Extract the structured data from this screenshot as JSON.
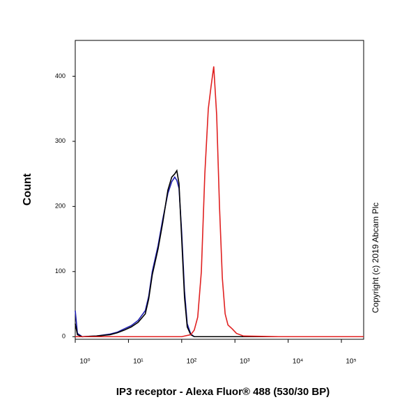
{
  "chart_data": {
    "type": "line",
    "x_label": "IP3 receptor - Alexa Fluor® 488 (530/30 BP)",
    "y_label": "Count",
    "annotation": "Copyright (c) 2019 Abcam Plc",
    "x_log": true,
    "xlim": [
      1,
      262144
    ],
    "xticks": [
      {
        "value": 1,
        "label": "10⁰"
      },
      {
        "value": 10,
        "label": "10¹"
      },
      {
        "value": 100,
        "label": "10²"
      },
      {
        "value": 1000,
        "label": "10³"
      },
      {
        "value": 10000,
        "label": "10⁴"
      },
      {
        "value": 100000,
        "label": "10⁵"
      }
    ],
    "ylim": [
      -4,
      455
    ],
    "yticks": [
      0,
      100,
      200,
      300,
      400
    ],
    "series": [
      {
        "color": "#2020b0",
        "x": [
          1,
          1.1,
          1.35,
          2.5,
          4.5,
          6.2,
          8.3,
          11.3,
          15.2,
          20.7,
          24,
          28,
          36,
          44,
          55,
          65,
          74,
          81,
          89,
          100,
          113,
          127,
          148,
          172,
          200,
          262144
        ],
        "values": [
          40,
          5,
          0,
          1,
          4,
          7,
          12,
          17,
          25,
          40,
          62,
          100,
          140,
          180,
          220,
          238,
          245,
          240,
          228,
          160,
          70,
          20,
          4,
          0,
          0,
          0
        ]
      },
      {
        "color": "#000000",
        "x": [
          1,
          1.1,
          1.35,
          2.5,
          4.5,
          6.2,
          8.3,
          11.3,
          15.2,
          20.7,
          24,
          28,
          36,
          44,
          55,
          65,
          74,
          81,
          89,
          100,
          113,
          127,
          148,
          172,
          200,
          262144
        ],
        "values": [
          20,
          3,
          0,
          1,
          3,
          6,
          10,
          15,
          22,
          35,
          58,
          95,
          135,
          175,
          225,
          245,
          250,
          255,
          235,
          150,
          60,
          15,
          3,
          0,
          0,
          0
        ]
      },
      {
        "color": "#e02020",
        "x": [
          1,
          100,
          148,
          172,
          200,
          234,
          272,
          316,
          357,
          400,
          454,
          513,
          580,
          655,
          740,
          890,
          1070,
          1450,
          6600,
          262144
        ],
        "values": [
          0,
          0,
          3,
          10,
          30,
          100,
          250,
          350,
          385,
          415,
          340,
          200,
          90,
          35,
          18,
          12,
          5,
          1,
          0,
          0
        ]
      }
    ]
  }
}
